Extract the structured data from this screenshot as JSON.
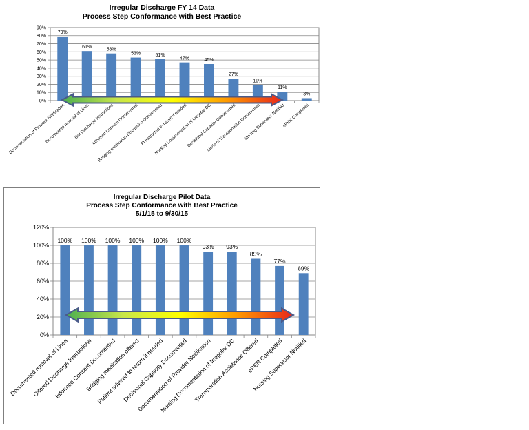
{
  "chart_data": [
    {
      "type": "bar",
      "title": "Irregular Discharge  FY 14 Data",
      "subtitle": "Process Step Conformance with Best Practice",
      "categories": [
        "Documentation of Provider Notification",
        "Documented removal of Lines",
        "Got Discharge Instructions",
        "Informed Consent Documented",
        "Bridging medication Discussion Documented",
        "Pt instructed to return if needed",
        "Nursing Documentation of Irregular DC",
        "Decisional Capacity Documented",
        "Mode of Transportation Documented",
        "Nursing Supervisor Notified",
        "ePER Completed"
      ],
      "values": [
        79,
        61,
        58,
        53,
        51,
        47,
        45,
        27,
        19,
        11,
        3
      ],
      "data_labels": [
        "79%",
        "61%",
        "58%",
        "53%",
        "51%",
        "47%",
        "45%",
        "27%",
        "19%",
        "11%",
        "3%"
      ],
      "y_ticks": [
        "0%",
        "10%",
        "20%",
        "30%",
        "40%",
        "50%",
        "60%",
        "70%",
        "80%",
        "90%"
      ],
      "ylim": [
        0,
        90
      ],
      "grid": true,
      "bar_color": "#4f81bd",
      "arrow_gradient": [
        "#4caf50",
        "#c8e64a",
        "#ffff00",
        "#ff9900",
        "#e8261b"
      ],
      "arrow_outline": "#4a5a8a"
    },
    {
      "type": "bar",
      "title": "Irregular Discharge  Pilot Data",
      "subtitle": "Process Step Conformance with Best Practice",
      "date_range": "5/1/15 to 9/30/15",
      "categories": [
        "Documented removal of Lines",
        "Offered Discharge Instructions",
        "Informed Consent Documented",
        "Bridging medication offered",
        "Patient  advised to return if needed",
        "Decisional Capacity Documented",
        "Documentation of Provider Notification",
        "Nursing Documentation of Irregular DC",
        "Transporation Assistance Offered",
        "ePER Completed",
        "Nursing Supervisor Notified"
      ],
      "values": [
        100,
        100,
        100,
        100,
        100,
        100,
        93,
        93,
        85,
        77,
        69
      ],
      "data_labels": [
        "100%",
        "100%",
        "100%",
        "100%",
        "100%",
        "100%",
        "93%",
        "93%",
        "85%",
        "77%",
        "69%"
      ],
      "y_ticks": [
        "0%",
        "20%",
        "40%",
        "60%",
        "80%",
        "100%",
        "120%"
      ],
      "ylim": [
        0,
        120
      ],
      "grid": true,
      "bar_color": "#4f81bd",
      "arrow_gradient": [
        "#4caf50",
        "#c8e64a",
        "#ffff00",
        "#ff9900",
        "#e8261b"
      ],
      "arrow_outline": "#4a5a8a"
    }
  ]
}
